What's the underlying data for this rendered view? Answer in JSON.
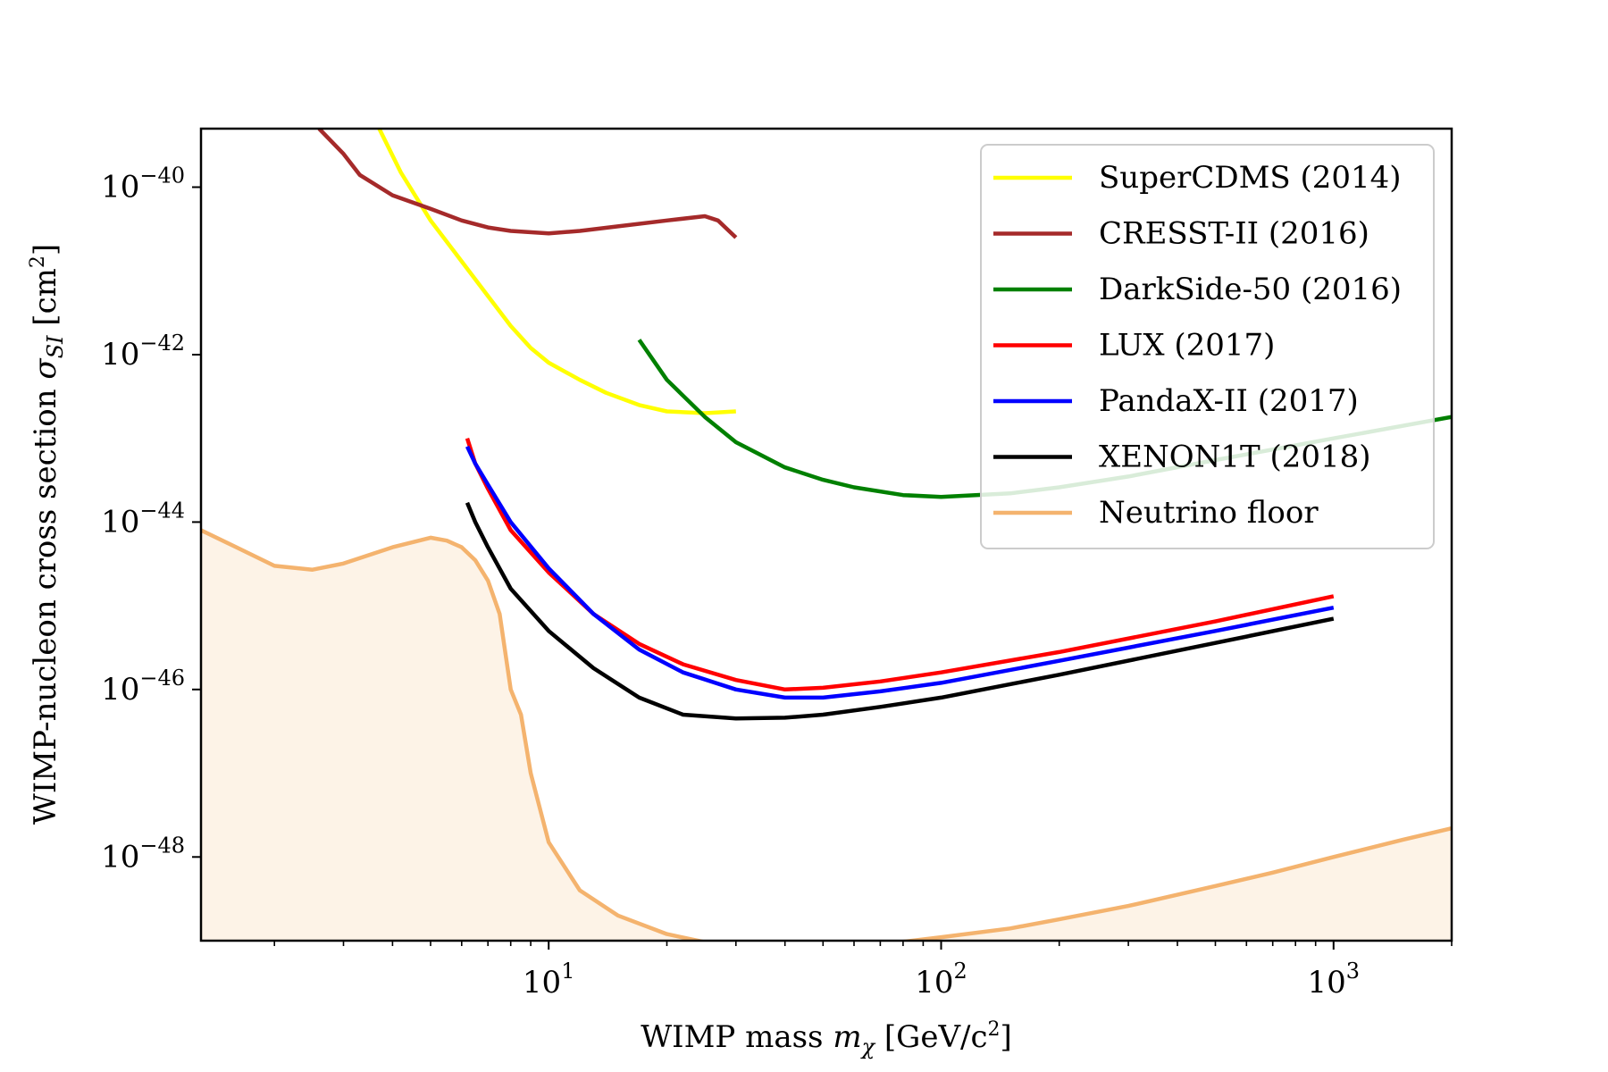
{
  "chart_data": {
    "type": "line",
    "xlabel": "WIMP mass mχ [GeV/c²]",
    "ylabel": "WIMP-nucleon cross section σSI [cm²]",
    "xscale": "log",
    "yscale": "log",
    "xlim": [
      1.3,
      2000
    ],
    "ylim": [
      1e-49,
      5e-40
    ],
    "xticks": [
      {
        "value": 10,
        "label": "10",
        "exp": "1"
      },
      {
        "value": 100,
        "label": "10",
        "exp": "2"
      },
      {
        "value": 1000,
        "label": "10",
        "exp": "3"
      }
    ],
    "yticks": [
      {
        "value": 1e-40,
        "label": "10",
        "exp": "−40"
      },
      {
        "value": 1e-42,
        "label": "10",
        "exp": "−42"
      },
      {
        "value": 1e-44,
        "label": "10",
        "exp": "−44"
      },
      {
        "value": 1e-46,
        "label": "10",
        "exp": "−46"
      },
      {
        "value": 1e-48,
        "label": "10",
        "exp": "−48"
      }
    ],
    "grid": false,
    "legend_position": "top-right",
    "series": [
      {
        "name": "SuperCDMS (2014)",
        "color": "#ffff00",
        "fill": false,
        "x": [
          3.7,
          4.2,
          5,
          6,
          7,
          8,
          9,
          10,
          12,
          14,
          17,
          20,
          25,
          30
        ],
        "y": [
          5e-40,
          1.5e-40,
          4e-41,
          1.3e-41,
          5e-42,
          2.2e-42,
          1.2e-42,
          8e-43,
          5e-43,
          3.5e-43,
          2.5e-43,
          2.1e-43,
          2e-43,
          2.1e-43
        ]
      },
      {
        "name": "CRESST-II (2016)",
        "color": "#a52a2a",
        "fill": false,
        "x": [
          2.6,
          3,
          3.3,
          4,
          5,
          6,
          7,
          8,
          10,
          12,
          15,
          20,
          25,
          27,
          30
        ],
        "y": [
          5e-40,
          2.5e-40,
          1.4e-40,
          8e-41,
          5.5e-41,
          4e-41,
          3.3e-41,
          3e-41,
          2.8e-41,
          3e-41,
          3.4e-41,
          4e-41,
          4.5e-41,
          4e-41,
          2.5e-41
        ]
      },
      {
        "name": "DarkSide-50 (2016)",
        "color": "#008000",
        "fill": false,
        "x": [
          17,
          20,
          25,
          30,
          40,
          50,
          60,
          80,
          100,
          150,
          200,
          300,
          500,
          1000,
          2000
        ],
        "y": [
          1.5e-42,
          5e-43,
          1.8e-43,
          9e-44,
          4.5e-44,
          3.2e-44,
          2.6e-44,
          2.1e-44,
          2e-44,
          2.2e-44,
          2.6e-44,
          3.5e-44,
          5.5e-44,
          1e-43,
          1.8e-43
        ]
      },
      {
        "name": "LUX (2017)",
        "color": "#ff0000",
        "fill": false,
        "x": [
          6.2,
          6.5,
          7,
          8,
          10,
          13,
          17,
          22,
          30,
          40,
          50,
          70,
          100,
          200,
          500,
          1000
        ],
        "y": [
          1e-43,
          5e-44,
          2.5e-44,
          8e-45,
          2.5e-45,
          8e-46,
          3.5e-46,
          2e-46,
          1.3e-46,
          1e-46,
          1.05e-46,
          1.25e-46,
          1.6e-46,
          2.8e-46,
          6.5e-46,
          1.3e-45
        ]
      },
      {
        "name": "PandaX-II (2017)",
        "color": "#0000ff",
        "fill": false,
        "x": [
          6.2,
          6.5,
          7,
          8,
          10,
          13,
          17,
          22,
          30,
          40,
          50,
          70,
          100,
          200,
          500,
          1000
        ],
        "y": [
          8e-44,
          5e-44,
          2.8e-44,
          1e-44,
          2.8e-45,
          8e-46,
          3e-46,
          1.6e-46,
          1e-46,
          8e-47,
          8e-47,
          9.5e-47,
          1.2e-46,
          2.2e-46,
          5e-46,
          9.5e-46
        ]
      },
      {
        "name": "XENON1T (2018)",
        "color": "#000000",
        "fill": false,
        "x": [
          6.2,
          6.5,
          7,
          8,
          10,
          13,
          17,
          22,
          30,
          40,
          50,
          70,
          100,
          200,
          500,
          1000
        ],
        "y": [
          1.7e-44,
          1e-44,
          5e-45,
          1.6e-45,
          5e-46,
          1.8e-46,
          8e-47,
          5e-47,
          4.5e-47,
          4.6e-47,
          5e-47,
          6.2e-47,
          8e-47,
          1.5e-46,
          3.6e-46,
          7e-46
        ]
      },
      {
        "name": "Neutrino floor",
        "color": "#f4b36e",
        "fill": true,
        "fill_color": "#fdf3e7",
        "x": [
          1.3,
          1.6,
          2,
          2.5,
          3,
          4,
          5,
          5.5,
          6,
          6.5,
          7,
          7.5,
          8,
          8.5,
          9,
          10,
          12,
          15,
          20,
          30,
          40,
          50,
          70,
          100,
          150,
          200,
          300,
          500,
          700,
          1000,
          1500,
          2000
        ],
        "y": [
          8e-45,
          5e-45,
          3e-45,
          2.7e-45,
          3.2e-45,
          5e-45,
          6.5e-45,
          6e-45,
          5e-45,
          3.5e-45,
          2e-45,
          8e-46,
          1e-46,
          5e-47,
          1e-47,
          1.5e-48,
          4e-49,
          2e-49,
          1.2e-49,
          8e-50,
          7.5e-50,
          8e-50,
          9e-50,
          1.1e-49,
          1.4e-49,
          1.8e-49,
          2.6e-49,
          4.5e-49,
          6.5e-49,
          1e-48,
          1.6e-48,
          2.2e-48
        ]
      }
    ]
  }
}
